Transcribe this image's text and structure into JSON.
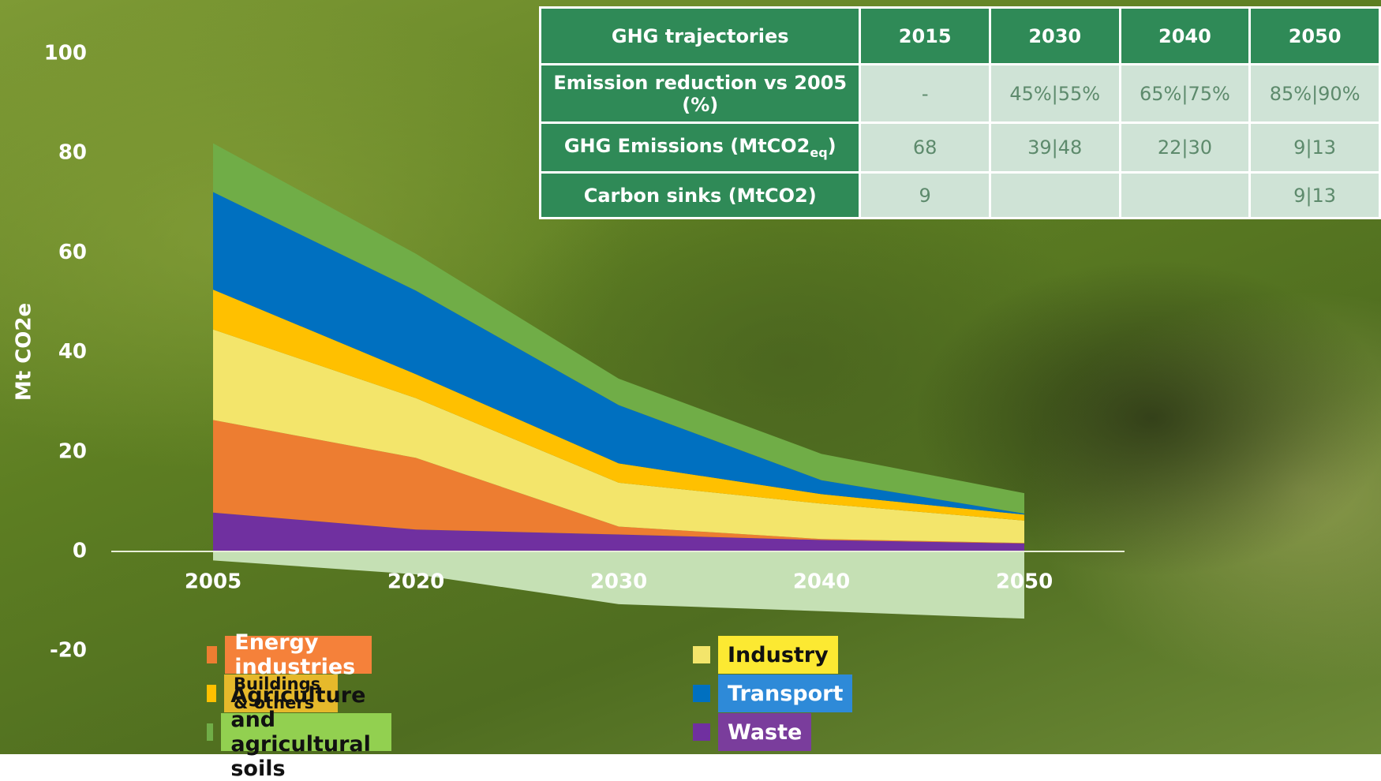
{
  "chart_data": {
    "type": "stacked_area",
    "y_label": "Mt CO2e",
    "categories": [
      "2005",
      "2020",
      "2030",
      "2040",
      "2050"
    ],
    "ylim": [
      -20,
      100
    ],
    "yticks": [
      -20,
      0,
      20,
      40,
      60,
      80,
      100
    ],
    "series": [
      {
        "name": "Waste",
        "color": "#7030a0",
        "label_bg": "#7a3d9c",
        "label_color": "#ffffff",
        "values": [
          7.8,
          4.4,
          3.4,
          2.3,
          1.6
        ]
      },
      {
        "name": "Energy industries",
        "color": "#ed7d31",
        "label_bg": "#f5813a",
        "label_color": "#ffffff",
        "values": [
          18.6,
          14.4,
          1.6,
          0.2,
          0.1
        ]
      },
      {
        "name": "Industry",
        "color": "#f3e56b",
        "label_bg": "#fce932",
        "label_color": "#111111",
        "values": [
          18.2,
          12,
          8.8,
          7.1,
          4.5
        ]
      },
      {
        "name": "Buildings & others",
        "color": "#ffc000",
        "label_bg": "#e6b92b",
        "label_color": "#111111",
        "values": [
          8,
          4.8,
          3.9,
          1.9,
          1.2
        ]
      },
      {
        "name": "Transport",
        "color": "#0070c0",
        "label_bg": "#2e8ad8",
        "label_color": "#ffffff",
        "values": [
          19.6,
          16.8,
          11.7,
          2.8,
          0.2
        ]
      },
      {
        "name": "Agriculture and agricultural soils",
        "color": "#70ad47",
        "label_bg": "#92d050",
        "label_color": "#111111",
        "values": [
          9.8,
          7.4,
          5.3,
          5.3,
          4.1
        ]
      }
    ],
    "sinks": {
      "color": "#c5e0b4",
      "values": [
        -1.8,
        -4.6,
        -10.6,
        -12,
        -13.5
      ]
    }
  },
  "table": {
    "header": [
      "GHG trajectories",
      "2015",
      "2030",
      "2040",
      "2050"
    ],
    "rows": [
      [
        "Emission reduction vs 2005 (%)",
        "-",
        "45%|55%",
        "65%|75%",
        "85%|90%"
      ],
      [
        {
          "text": "GHG Emissions (MtCO2",
          "sub": "eq",
          "tail": ")"
        },
        "68",
        "39|48",
        "22|30",
        "9|13"
      ],
      [
        "Carbon sinks (MtCO2)",
        "9",
        null,
        null,
        "9|13"
      ]
    ]
  }
}
